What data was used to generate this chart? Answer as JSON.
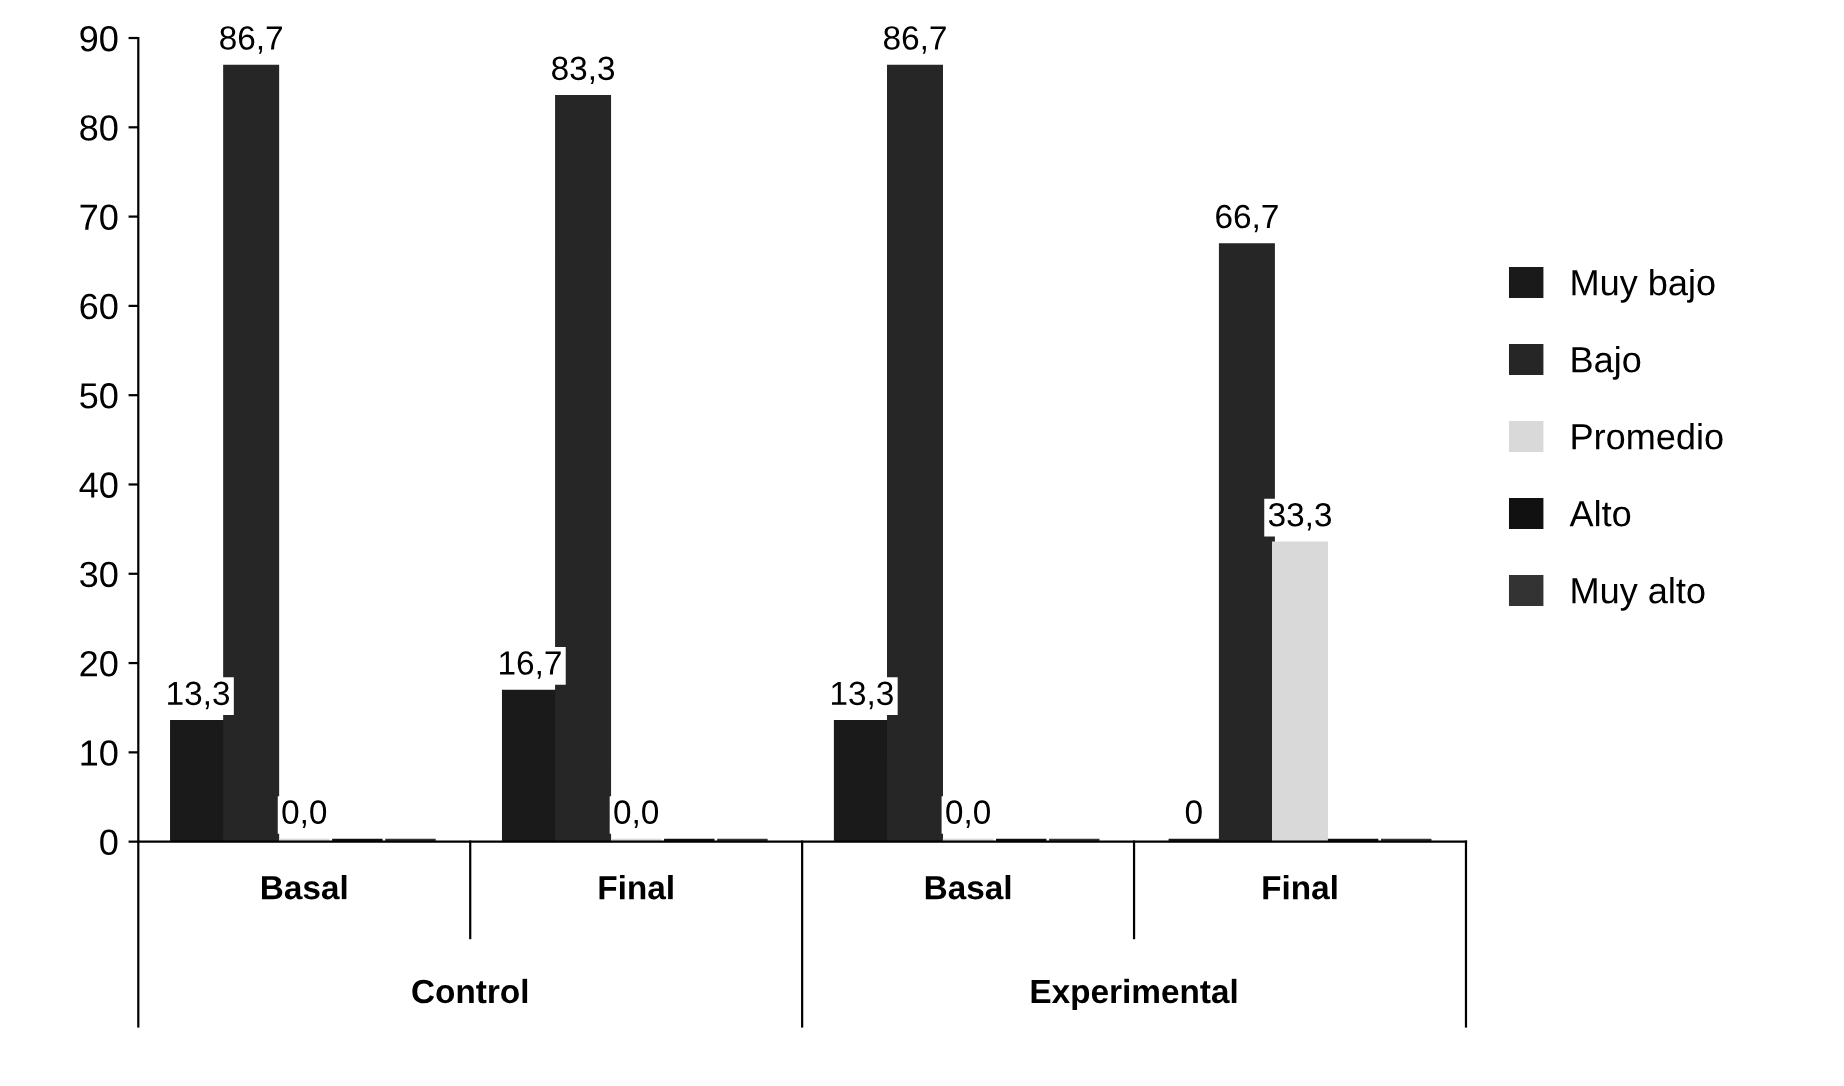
{
  "chart_data": {
    "type": "bar",
    "categories": [
      "Basal",
      "Final",
      "Basal",
      "Final"
    ],
    "annotations": [
      "Control",
      "Experimental"
    ],
    "series": [
      {
        "name": "Muy bajo",
        "color": "#1a1a1a",
        "values": [
          13.3,
          16.7,
          13.3,
          0
        ],
        "value_labels": [
          "13,3",
          "16,7",
          "13,3",
          "0"
        ]
      },
      {
        "name": "Bajo",
        "color": "#262626",
        "values": [
          86.7,
          83.3,
          86.7,
          66.7
        ],
        "value_labels": [
          "86,7",
          "83,3",
          "86,7",
          "66,7"
        ]
      },
      {
        "name": "Promedio",
        "color": "#d9d9d9",
        "values": [
          0,
          0,
          0,
          33.3
        ],
        "value_labels": [
          "0,0",
          "0,0",
          "0,0",
          "33,3"
        ]
      },
      {
        "name": "Alto",
        "color": "#111111",
        "values": [
          0,
          0,
          0,
          0
        ]
      },
      {
        "name": "Muy alto",
        "color": "#333333",
        "values": [
          0,
          0,
          0,
          0
        ]
      }
    ],
    "ylim": [
      0,
      90
    ],
    "yticks": [
      0,
      10,
      20,
      30,
      40,
      50,
      60,
      70,
      80,
      90
    ],
    "grid": false,
    "legend": "right"
  }
}
